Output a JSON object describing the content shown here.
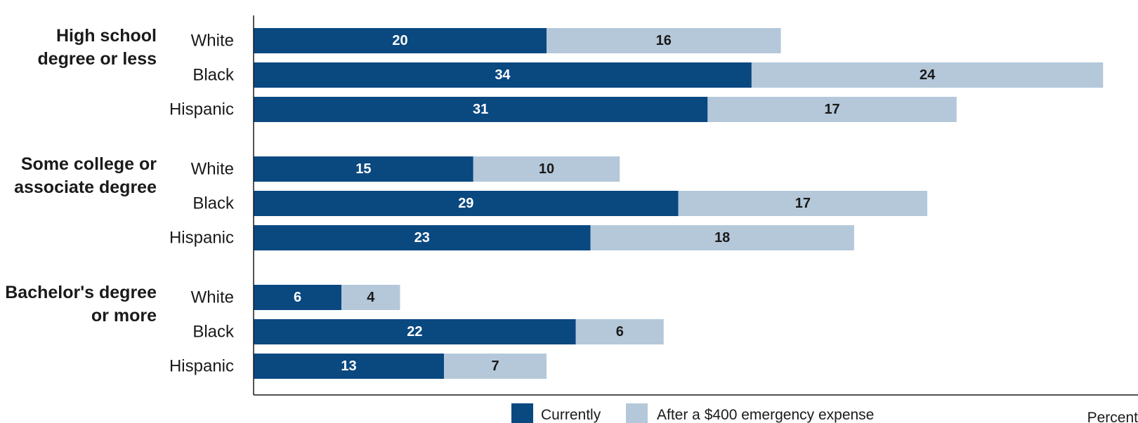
{
  "chart_data": {
    "type": "bar",
    "orientation": "horizontal",
    "stacked": true,
    "x_unit_label": "Percent",
    "groups": [
      {
        "label_lines": [
          "High school",
          "degree or less"
        ],
        "rows": [
          {
            "label": "White",
            "values": [
              20,
              16
            ]
          },
          {
            "label": "Black",
            "values": [
              34,
              24
            ]
          },
          {
            "label": "Hispanic",
            "values": [
              31,
              17
            ]
          }
        ]
      },
      {
        "label_lines": [
          "Some college or",
          "associate degree"
        ],
        "rows": [
          {
            "label": "White",
            "values": [
              15,
              10
            ]
          },
          {
            "label": "Black",
            "values": [
              29,
              17
            ]
          },
          {
            "label": "Hispanic",
            "values": [
              23,
              18
            ]
          }
        ]
      },
      {
        "label_lines": [
          "Bachelor's degree",
          "or more"
        ],
        "rows": [
          {
            "label": "White",
            "values": [
              6,
              4
            ]
          },
          {
            "label": "Black",
            "values": [
              22,
              6
            ]
          },
          {
            "label": "Hispanic",
            "values": [
              13,
              7
            ]
          }
        ]
      }
    ],
    "series": [
      {
        "name": "Currently",
        "color": "#0a4880",
        "label_color": "#ffffff"
      },
      {
        "name": "After a $400 emergency expense",
        "color": "#b4c8da",
        "label_color": "#1a1a1a"
      }
    ],
    "legend_position": "bottom-center",
    "grid": false
  }
}
